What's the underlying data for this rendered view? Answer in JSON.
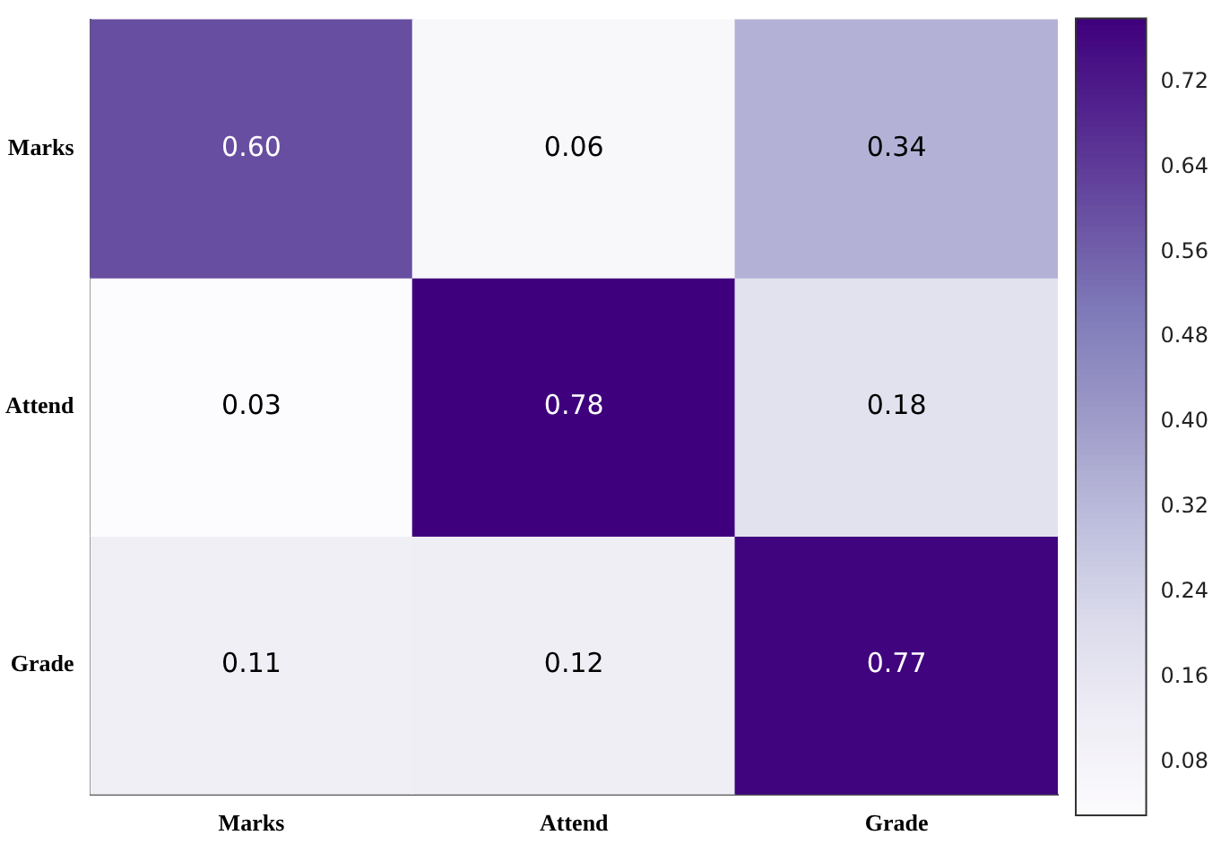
{
  "chart_data": {
    "type": "heatmap",
    "categories": [
      "Marks",
      "Attend",
      "Grade"
    ],
    "y_categories": [
      "Marks",
      "Attend",
      "Grade"
    ],
    "cells": [
      [
        0.6,
        0.06,
        0.34
      ],
      [
        0.03,
        0.78,
        0.18
      ],
      [
        0.11,
        0.12,
        0.77
      ]
    ],
    "cell_labels": [
      [
        "0.60",
        "0.06",
        "0.34"
      ],
      [
        "0.03",
        "0.78",
        "0.18"
      ],
      [
        "0.11",
        "0.12",
        "0.77"
      ]
    ],
    "clim": [
      0.03,
      0.78
    ],
    "cticks": [
      {
        "value": 0.08,
        "label": "0.08"
      },
      {
        "value": 0.16,
        "label": "0.16"
      },
      {
        "value": 0.24,
        "label": "0.24"
      },
      {
        "value": 0.32,
        "label": "0.32"
      },
      {
        "value": 0.4,
        "label": "0.40"
      },
      {
        "value": 0.48,
        "label": "0.48"
      },
      {
        "value": 0.56,
        "label": "0.56"
      },
      {
        "value": 0.64,
        "label": "0.64"
      },
      {
        "value": 0.72,
        "label": "0.72"
      }
    ]
  }
}
